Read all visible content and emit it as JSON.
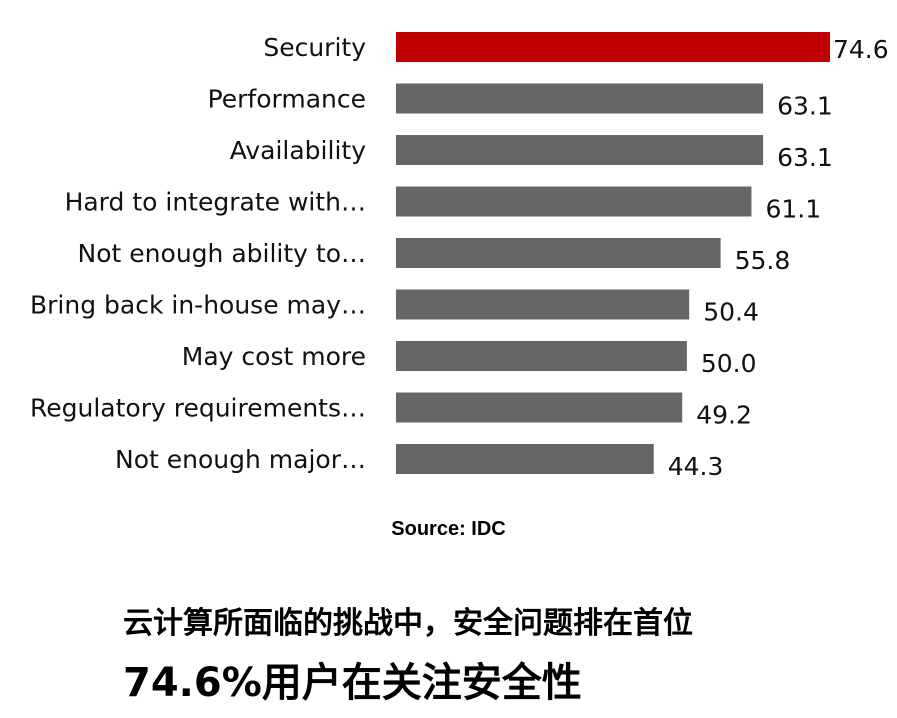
{
  "chart_data": {
    "type": "bar",
    "orientation": "horizontal",
    "categories": [
      "Security",
      "Performance",
      "Availability",
      "Hard to integrate with…",
      "Not enough ability to…",
      "Bring back in-house may…",
      "May cost more",
      "Regulatory requirements…",
      "Not enough major…"
    ],
    "values": [
      74.6,
      63.1,
      63.1,
      61.1,
      55.8,
      50.4,
      50.0,
      49.2,
      44.3
    ],
    "value_labels": [
      "74.6",
      "63.1",
      "63.1",
      "61.1",
      "55.8",
      "50.4",
      "50.0",
      "49.2",
      "44.3"
    ],
    "bar_colors": [
      "#c00000",
      "#666666",
      "#666666",
      "#666666",
      "#666666",
      "#666666",
      "#666666",
      "#666666",
      "#666666"
    ],
    "xlim": [
      0,
      74.6
    ],
    "grid": false,
    "legend": "none"
  },
  "source": "Source: IDC",
  "caption": {
    "line1": "云计算所面临的挑战中，安全问题排在首位",
    "line2_percent": "74.6%",
    "line2_text": "用户在关注安全性"
  }
}
